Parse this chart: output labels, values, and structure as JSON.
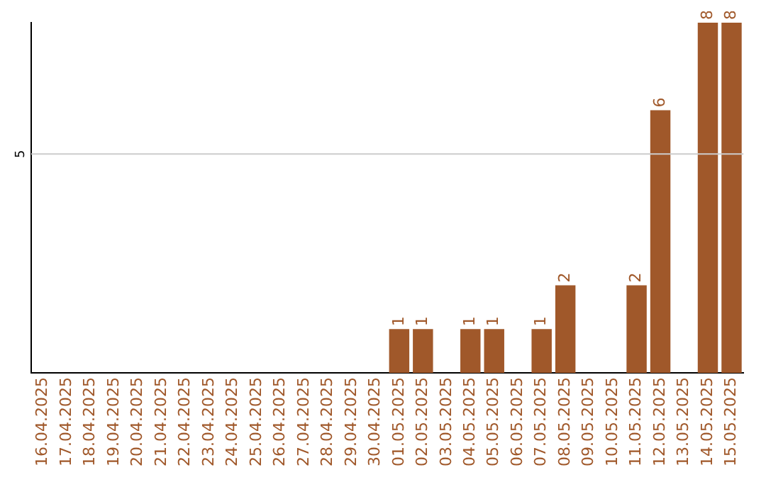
{
  "chart_data": {
    "type": "bar",
    "categories": [
      "16.04.2025",
      "17.04.2025",
      "18.04.2025",
      "19.04.2025",
      "20.04.2025",
      "21.04.2025",
      "22.04.2025",
      "23.04.2025",
      "24.04.2025",
      "25.04.2025",
      "26.04.2025",
      "27.04.2025",
      "28.04.2025",
      "29.04.2025",
      "30.04.2025",
      "01.05.2025",
      "02.05.2025",
      "03.05.2025",
      "04.05.2025",
      "05.05.2025",
      "06.05.2025",
      "07.05.2025",
      "08.05.2025",
      "09.05.2025",
      "10.05.2025",
      "11.05.2025",
      "12.05.2025",
      "13.05.2025",
      "14.05.2025",
      "15.05.2025"
    ],
    "values": [
      null,
      null,
      null,
      null,
      null,
      null,
      null,
      null,
      null,
      null,
      null,
      null,
      null,
      null,
      null,
      1,
      1,
      null,
      1,
      1,
      null,
      1,
      2,
      null,
      null,
      2,
      6,
      null,
      8,
      8
    ],
    "data_labels": true,
    "color": "#a0582a",
    "ylim": [
      0,
      8
    ],
    "yticks": [
      {
        "value": 5,
        "label": "5"
      }
    ],
    "grid": "y",
    "legend": false
  }
}
